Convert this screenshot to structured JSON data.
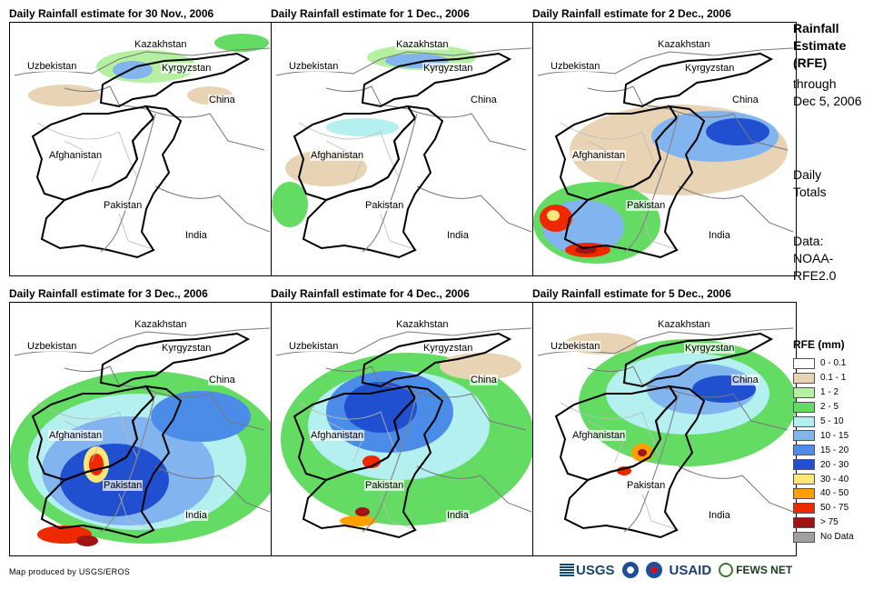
{
  "panels": [
    {
      "title": "Daily Rainfall estimate for 30 Nov., 2006"
    },
    {
      "title": "Daily Rainfall estimate for 1 Dec., 2006"
    },
    {
      "title": "Daily Rainfall estimate for 2 Dec., 2006"
    },
    {
      "title": "Daily Rainfall estimate for 3 Dec., 2006"
    },
    {
      "title": "Daily Rainfall estimate for 4 Dec., 2006"
    },
    {
      "title": "Daily Rainfall estimate for 5 Dec., 2006"
    }
  ],
  "countries": {
    "kazakhstan": "Kazakhstan",
    "uzbekistan": "Uzbekistan",
    "kyrgyzstan": "Kyrgyzstan",
    "china": "China",
    "afghanistan": "Afghanistan",
    "pakistan": "Pakistan",
    "india": "India"
  },
  "side": {
    "title": "Rainfall Estimate (RFE)",
    "through": "through",
    "date": "Dec 5, 2006",
    "totals": "Daily Totals",
    "data_label": "Data:",
    "data_source": "NOAA-RFE2.0"
  },
  "legend": {
    "title": "RFE (mm)",
    "items": [
      {
        "label": "0 - 0.1",
        "color": "#ffffff"
      },
      {
        "label": "0.1 - 1",
        "color": "#e8d4b4"
      },
      {
        "label": "1 - 2",
        "color": "#b4f0a0"
      },
      {
        "label": "2 - 5",
        "color": "#64dc64"
      },
      {
        "label": "5 - 10",
        "color": "#b4f0f0"
      },
      {
        "label": "10 - 15",
        "color": "#82b4f0"
      },
      {
        "label": "15 - 20",
        "color": "#4a8ce8"
      },
      {
        "label": "20 - 30",
        "color": "#2050d0"
      },
      {
        "label": "30 - 40",
        "color": "#ffe678"
      },
      {
        "label": "40 - 50",
        "color": "#ffa000"
      },
      {
        "label": "50 - 75",
        "color": "#f02800"
      },
      {
        "label": "> 75",
        "color": "#a01414"
      },
      {
        "label": "No Data",
        "color": "#a0a0a0"
      }
    ]
  },
  "credit": "Map produced by USGS/EROS",
  "logos": {
    "usgs": "USGS",
    "usaid": "USAID",
    "fews": "FEWS NET"
  }
}
